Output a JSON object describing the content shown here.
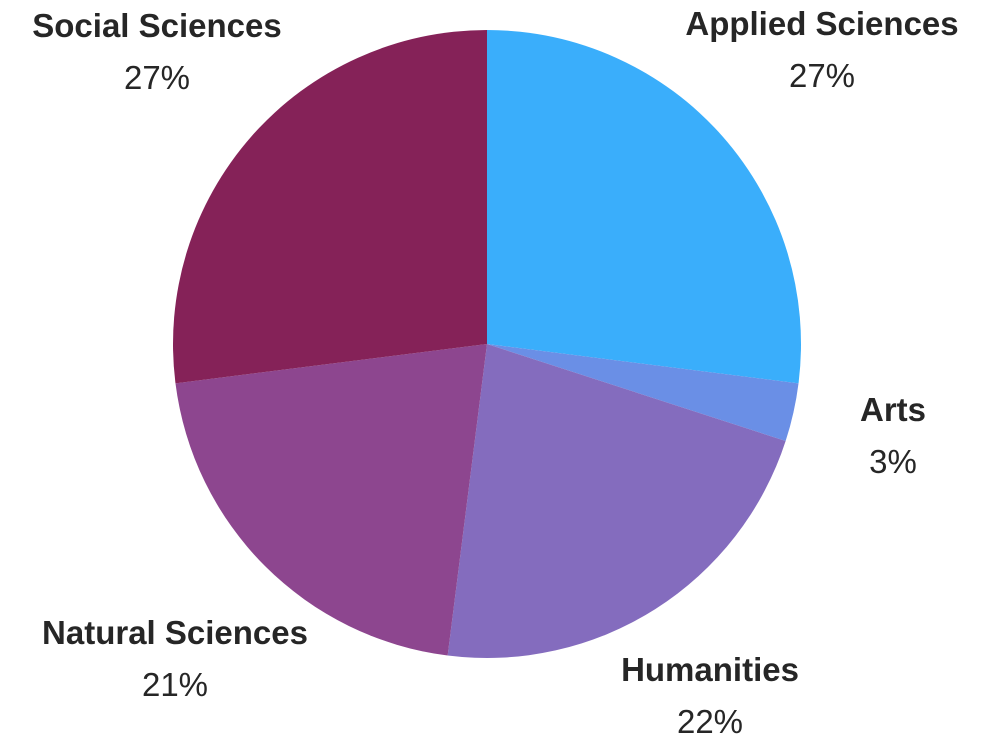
{
  "chart_data": {
    "type": "pie",
    "title": "",
    "start_angle_deg": 0,
    "direction": "clockwise",
    "slices": [
      {
        "label": "Applied Sciences",
        "percent_text": "27%",
        "value": 27,
        "color": "#3aaefb"
      },
      {
        "label": "Arts",
        "percent_text": "3%",
        "value": 3,
        "color": "#6a8fe6"
      },
      {
        "label": "Humanities",
        "percent_text": "22%",
        "value": 22,
        "color": "#846cbe"
      },
      {
        "label": "Natural Sciences",
        "percent_text": "21%",
        "value": 21,
        "color": "#8d468f"
      },
      {
        "label": "Social Sciences",
        "percent_text": "27%",
        "value": 27,
        "color": "#852258"
      }
    ]
  }
}
